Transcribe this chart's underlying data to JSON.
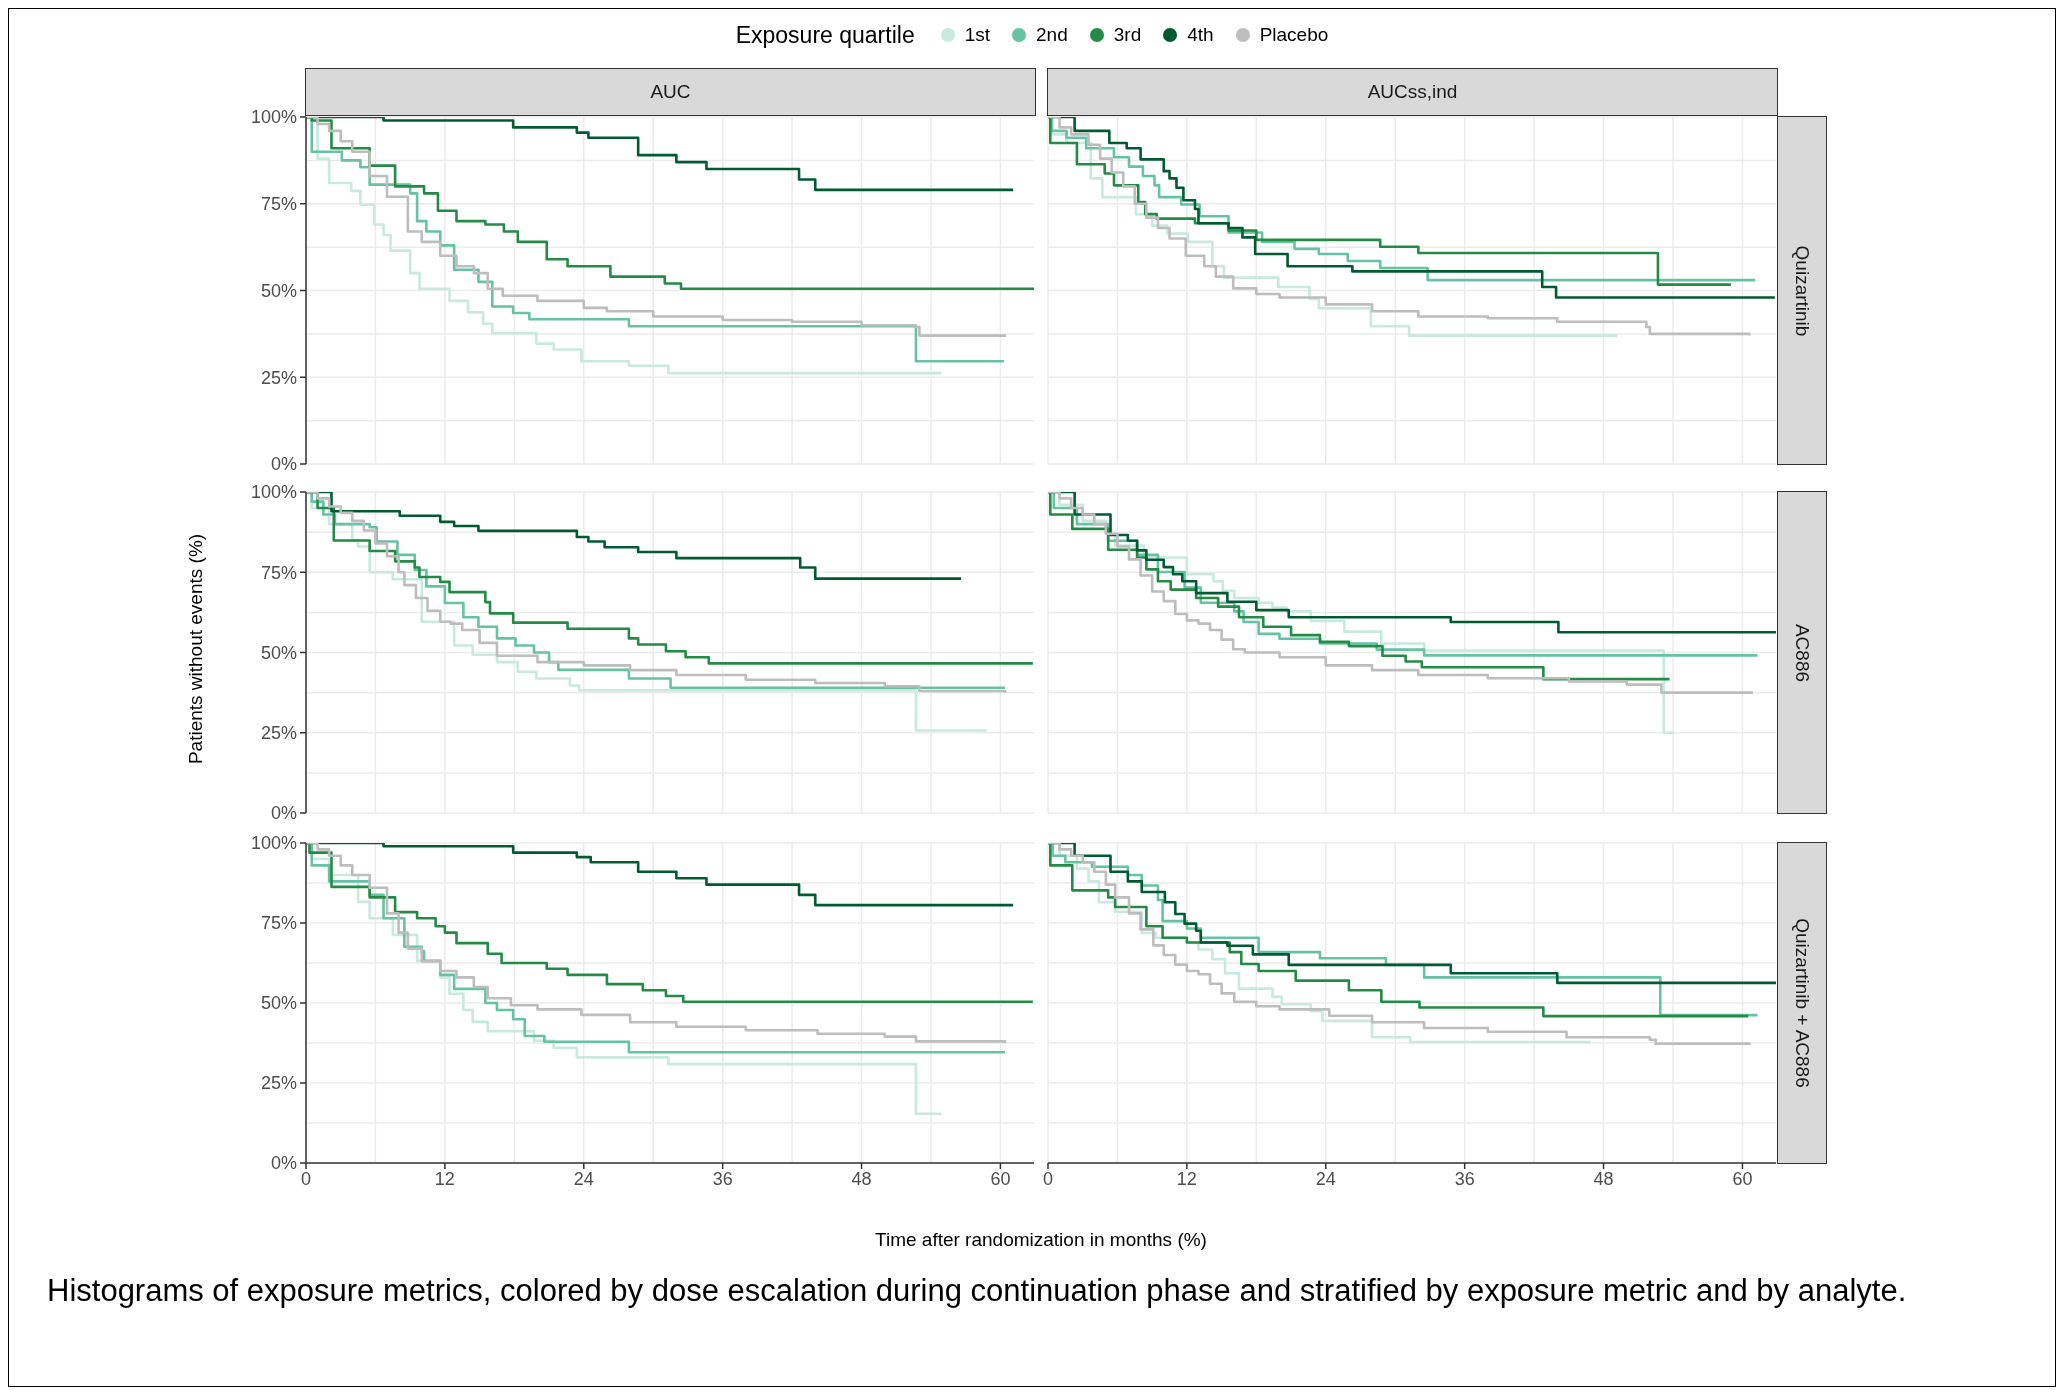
{
  "chart_data": [
    {
      "type": "step",
      "title": "AUC",
      "legend_title": "Exposure quartile",
      "legend": "top",
      "tick_labels": "y",
      "grid": true,
      "xlim": [
        0,
        62.9
      ],
      "ylim": [
        0,
        100
      ],
      "xticks": [
        {
          "value": 0,
          "label": null
        },
        {
          "value": 6,
          "label": null
        },
        {
          "value": 12,
          "label": null
        },
        {
          "value": 18,
          "label": null
        },
        {
          "value": 24,
          "label": null
        },
        {
          "value": 30,
          "label": null
        },
        {
          "value": 36,
          "label": null
        },
        {
          "value": 42,
          "label": null
        },
        {
          "value": 48,
          "label": null
        },
        {
          "value": 54,
          "label": null
        },
        {
          "value": 60,
          "label": null
        }
      ],
      "yticks": [
        {
          "value": 0,
          "label": "0%"
        },
        {
          "value": 12.5,
          "label": null
        },
        {
          "value": 25,
          "label": "25%"
        },
        {
          "value": 37.5,
          "label": null
        },
        {
          "value": 50,
          "label": "50%"
        },
        {
          "value": 62.5,
          "label": null
        },
        {
          "value": 75,
          "label": "75%"
        },
        {
          "value": 87.5,
          "label": null
        },
        {
          "value": 100,
          "label": "100%"
        }
      ],
      "series": [
        {
          "name": "1st",
          "color": "#c7e9e0",
          "x": [
            0,
            1,
            2,
            3.9,
            4.7,
            5.9,
            6.7,
            7.3,
            9,
            9.8,
            12.4,
            14,
            15.3,
            16.1,
            19.9,
            21.4,
            23.8,
            27.9,
            31.3,
            54.9
          ],
          "values": [
            100,
            88,
            81,
            78.7,
            74.7,
            69,
            66,
            61.5,
            55,
            50.5,
            47,
            43.7,
            40.4,
            37.7,
            34.7,
            33,
            29.6,
            28.3,
            26.2,
            26.2
          ]
        },
        {
          "name": "2nd",
          "color": "#66c2a4",
          "x": [
            0,
            0.5,
            3.1,
            4.7,
            5.5,
            9,
            9.6,
            10.4,
            11.6,
            12.8,
            14.9,
            16.1,
            17.9,
            19.3,
            27.9,
            52.7,
            60.3
          ],
          "values": [
            100,
            90,
            87.5,
            85.5,
            80.5,
            78,
            70,
            67,
            63,
            56,
            52.5,
            45.4,
            43.5,
            41.7,
            39.7,
            29.6,
            29.6
          ]
        },
        {
          "name": "3rd",
          "color": "#238b45",
          "x": [
            0,
            0.5,
            2.2,
            5.5,
            7.7,
            10.2,
            11.4,
            13,
            15.5,
            17.1,
            18.3,
            20.8,
            22.6,
            26.3,
            31,
            32.4,
            62.9
          ],
          "values": [
            100,
            99,
            91,
            86,
            80,
            78,
            73,
            70,
            69,
            67,
            64,
            59,
            57,
            54,
            52,
            50.5,
            50.5
          ]
        },
        {
          "name": "4th",
          "color": "#005a32",
          "x": [
            0,
            6.7,
            17.9,
            23.4,
            24.4,
            28.7,
            32,
            34.6,
            42.6,
            44,
            61.1
          ],
          "values": [
            100,
            99,
            97,
            95.5,
            94,
            89,
            87,
            85,
            82,
            79,
            79
          ]
        },
        {
          "name": "Placebo",
          "color": "#bdbdbd",
          "x": [
            0,
            1,
            2,
            3,
            4,
            5.5,
            7,
            8.8,
            10,
            11.6,
            13,
            14.5,
            15.7,
            17,
            20,
            24,
            26,
            30,
            36,
            42,
            48,
            52.7,
            53,
            60.5
          ],
          "values": [
            100,
            98,
            96,
            93,
            90,
            83,
            77,
            67,
            64,
            60,
            57,
            55,
            50.5,
            48.5,
            47,
            45,
            44,
            42.5,
            41.5,
            41,
            40,
            39.5,
            37,
            37
          ]
        }
      ]
    },
    {
      "type": "step",
      "title": "AUCss,ind",
      "y2label": "Quizartinib",
      "tick_labels": false,
      "grid": true,
      "xlim": [
        0,
        62.9
      ],
      "ylim": [
        0,
        100
      ],
      "xticks": [
        {
          "value": 0,
          "label": null
        },
        {
          "value": 6,
          "label": null
        },
        {
          "value": 12,
          "label": null
        },
        {
          "value": 18,
          "label": null
        },
        {
          "value": 24,
          "label": null
        },
        {
          "value": 30,
          "label": null
        },
        {
          "value": 36,
          "label": null
        },
        {
          "value": 42,
          "label": null
        },
        {
          "value": 48,
          "label": null
        },
        {
          "value": 54,
          "label": null
        },
        {
          "value": 60,
          "label": null
        }
      ],
      "yticks": [
        {
          "value": 0,
          "label": null
        },
        {
          "value": 12.5,
          "label": null
        },
        {
          "value": 25,
          "label": null
        },
        {
          "value": 37.5,
          "label": null
        },
        {
          "value": 50,
          "label": null
        },
        {
          "value": 62.5,
          "label": null
        },
        {
          "value": 75,
          "label": null
        },
        {
          "value": 87.5,
          "label": null
        },
        {
          "value": 100,
          "label": null
        }
      ],
      "series": [
        {
          "color": "#c7e9e0",
          "x": [
            0,
            0.4,
            1.6,
            3.7,
            4.7,
            7.6,
            9,
            10.3,
            12.1,
            14.2,
            15.2,
            19.9,
            22.6,
            23.4,
            27.9,
            31.2,
            49.2
          ],
          "values": [
            100,
            95,
            92.5,
            82.3,
            76.9,
            72,
            68.7,
            66.4,
            64,
            57,
            53.7,
            51,
            47.6,
            44.9,
            39.7,
            37,
            37
          ]
        },
        {
          "color": "#66c2a4",
          "x": [
            0,
            0.3,
            1.6,
            3.3,
            5.7,
            7,
            8.2,
            9.2,
            9.6,
            11.5,
            13.1,
            15.6,
            18.5,
            21.3,
            23.4,
            25.9,
            28.7,
            32.8,
            61.1
          ],
          "values": [
            100,
            96,
            94,
            91,
            88.4,
            85.7,
            83,
            80.3,
            76.9,
            74.8,
            71.4,
            66.7,
            64,
            62,
            60.5,
            58.5,
            56.5,
            53,
            53
          ]
        },
        {
          "color": "#238b45",
          "x": [
            0,
            0.2,
            2.5,
            4.9,
            5.7,
            7.8,
            8.4,
            9.4,
            12.7,
            15.6,
            18,
            28.7,
            32,
            52.7,
            59
          ],
          "values": [
            100,
            92.5,
            86.4,
            83.7,
            80.3,
            75.5,
            72,
            70.7,
            69.4,
            67.3,
            64.6,
            62.6,
            60.8,
            51.7,
            51.7
          ]
        },
        {
          "color": "#005a32",
          "x": [
            0,
            2.3,
            5.3,
            6.8,
            8,
            10,
            10.5,
            11.1,
            11.7,
            12.7,
            13,
            15.6,
            16.8,
            17.9,
            20.7,
            26.3,
            42.7,
            43.9,
            62.8
          ],
          "values": [
            100,
            96,
            92.5,
            91,
            87.8,
            84.4,
            82.3,
            79.6,
            76,
            73.5,
            69.4,
            68,
            65.3,
            60.5,
            57,
            55.5,
            51,
            48,
            48
          ]
        },
        {
          "color": "#bdbdbd",
          "x": [
            0,
            1,
            2,
            3.5,
            4.5,
            5.5,
            6.5,
            7.5,
            8.5,
            9.5,
            10.5,
            11.9,
            13.5,
            14.5,
            16,
            18,
            20,
            24,
            28,
            32,
            38,
            44,
            51.7,
            52,
            60.6
          ],
          "values": [
            100,
            97,
            95,
            92,
            88,
            84,
            80,
            75,
            71,
            68,
            65,
            60,
            57,
            54,
            50.6,
            49,
            48,
            46,
            44,
            42.5,
            42,
            41,
            39.5,
            37.5,
            37
          ]
        }
      ]
    },
    {
      "type": "step",
      "ylabel": "Patients without events (%)",
      "tick_labels": "y",
      "grid": true,
      "xlim": [
        0,
        62.9
      ],
      "ylim": [
        0,
        100
      ],
      "xticks": [
        {
          "value": 0,
          "label": null
        },
        {
          "value": 6,
          "label": null
        },
        {
          "value": 12,
          "label": null
        },
        {
          "value": 18,
          "label": null
        },
        {
          "value": 24,
          "label": null
        },
        {
          "value": 30,
          "label": null
        },
        {
          "value": 36,
          "label": null
        },
        {
          "value": 42,
          "label": null
        },
        {
          "value": 48,
          "label": null
        },
        {
          "value": 54,
          "label": null
        },
        {
          "value": 60,
          "label": null
        }
      ],
      "yticks": [
        {
          "value": 0,
          "label": "0%"
        },
        {
          "value": 12.5,
          "label": null
        },
        {
          "value": 25,
          "label": "25%"
        },
        {
          "value": 37.5,
          "label": null
        },
        {
          "value": 50,
          "label": "50%"
        },
        {
          "value": 62.5,
          "label": null
        },
        {
          "value": 75,
          "label": "75%"
        },
        {
          "value": 87.5,
          "label": null
        },
        {
          "value": 100,
          "label": "100%"
        }
      ],
      "series": [
        {
          "color": "#c7e9e0",
          "x": [
            0,
            0.5,
            2,
            4,
            4.5,
            5.5,
            7.5,
            10,
            12.8,
            14.4,
            16.5,
            18.3,
            19.9,
            22.8,
            23.6,
            52.7,
            58.8
          ],
          "values": [
            100,
            95,
            90,
            85,
            83,
            75,
            72.8,
            59.6,
            52.2,
            49.3,
            47,
            44,
            41.9,
            39.7,
            38.2,
            25.7,
            25.7
          ]
        },
        {
          "color": "#66c2a4",
          "x": [
            0,
            0.5,
            1.5,
            2.5,
            5.5,
            6.1,
            7.9,
            9.4,
            10.4,
            12,
            13.6,
            14.9,
            16.5,
            18.1,
            19.7,
            21,
            21.8,
            27.9,
            31.5,
            60.4
          ],
          "values": [
            100,
            97,
            93,
            90,
            89,
            84.6,
            80.4,
            75.7,
            70.6,
            65.4,
            61,
            58,
            54.4,
            52.2,
            50,
            47,
            44.6,
            41.9,
            39,
            39
          ]
        },
        {
          "color": "#238b45",
          "x": [
            0,
            1,
            2.4,
            5.5,
            7.7,
            9.4,
            9.8,
            11.6,
            12.4,
            15.5,
            15.9,
            17.9,
            22.6,
            27.9,
            28.7,
            31.1,
            32.8,
            34.8,
            62.8
          ],
          "values": [
            100,
            95,
            84.9,
            81.6,
            78.4,
            76.5,
            73.5,
            72,
            68.8,
            65.7,
            62.2,
            59.3,
            57.4,
            54.4,
            52.5,
            50.4,
            48.5,
            46.6,
            46.6
          ]
        },
        {
          "color": "#005a32",
          "x": [
            0,
            2.2,
            8.1,
            11.6,
            12.8,
            14.9,
            23.4,
            24.4,
            25.8,
            28.7,
            32,
            42.7,
            44,
            56.6
          ],
          "values": [
            100,
            94,
            92.6,
            90.7,
            89.4,
            87.9,
            86,
            84.6,
            82.8,
            81.3,
            79.4,
            76.5,
            73,
            73
          ]
        },
        {
          "color": "#bdbdbd",
          "x": [
            0,
            1,
            2,
            3,
            4,
            5,
            6,
            7,
            8,
            8.5,
            9.5,
            10.5,
            11.6,
            12.5,
            13.5,
            15,
            16.5,
            20,
            24,
            28,
            32,
            38,
            44,
            50,
            53,
            60.4
          ],
          "values": [
            100,
            98,
            95.5,
            93.5,
            91,
            88,
            84,
            80,
            75,
            71,
            67,
            63,
            59.6,
            59,
            57,
            53,
            49,
            47,
            46,
            44.5,
            43,
            41.5,
            40.5,
            39.5,
            38,
            37.5
          ]
        }
      ]
    },
    {
      "type": "step",
      "y2label": "AC886",
      "tick_labels": false,
      "grid": true,
      "xlim": [
        0,
        62.9
      ],
      "ylim": [
        0,
        100
      ],
      "xticks": [
        {
          "value": 0,
          "label": null
        },
        {
          "value": 6,
          "label": null
        },
        {
          "value": 12,
          "label": null
        },
        {
          "value": 18,
          "label": null
        },
        {
          "value": 24,
          "label": null
        },
        {
          "value": 30,
          "label": null
        },
        {
          "value": 36,
          "label": null
        },
        {
          "value": 42,
          "label": null
        },
        {
          "value": 48,
          "label": null
        },
        {
          "value": 54,
          "label": null
        },
        {
          "value": 60,
          "label": null
        }
      ],
      "yticks": [
        {
          "value": 0,
          "label": null
        },
        {
          "value": 12.5,
          "label": null
        },
        {
          "value": 25,
          "label": null
        },
        {
          "value": 37.5,
          "label": null
        },
        {
          "value": 50,
          "label": null
        },
        {
          "value": 62.5,
          "label": null
        },
        {
          "value": 75,
          "label": null
        },
        {
          "value": 87.5,
          "label": null
        },
        {
          "value": 100,
          "label": null
        }
      ],
      "series": [
        {
          "color": "#c7e9e0",
          "x": [
            0,
            1,
            3,
            5,
            5.8,
            8.3,
            12,
            14.3,
            15.1,
            16.1,
            18.2,
            19.4,
            20.6,
            22.7,
            25.6,
            28.8,
            32.5,
            53.2,
            54.1
          ],
          "values": [
            100,
            96,
            91,
            87,
            83.3,
            79.6,
            74.4,
            72.2,
            69.2,
            67,
            65.5,
            64,
            62.8,
            59.8,
            56.5,
            52.8,
            50.6,
            25,
            25
          ]
        },
        {
          "color": "#66c2a4",
          "x": [
            0,
            0.5,
            2.5,
            5.2,
            7.7,
            9.5,
            11.8,
            13.2,
            16.1,
            16.9,
            18.2,
            20,
            23.5,
            28.4,
            32.5,
            61.3
          ],
          "values": [
            100,
            95,
            90,
            84.8,
            80.4,
            75.1,
            70.2,
            65.5,
            62.8,
            59.5,
            55.8,
            54.3,
            52.8,
            50.9,
            49.1,
            49.1
          ]
        },
        {
          "color": "#238b45",
          "x": [
            0,
            0.2,
            2.1,
            5.2,
            7.7,
            8.5,
            9.5,
            10.6,
            12.8,
            14.7,
            16.5,
            18.6,
            21,
            23.5,
            26,
            28.9,
            30.9,
            32.3,
            42.8,
            53.7
          ],
          "values": [
            100,
            93,
            88.5,
            82,
            79.6,
            75.9,
            72.2,
            69.6,
            67,
            64.3,
            61,
            58,
            55.4,
            53.3,
            52,
            49,
            47.2,
            45.4,
            41.7,
            41.7
          ]
        },
        {
          "color": "#005a32",
          "x": [
            0,
            2.3,
            5.4,
            6.9,
            7.7,
            8.5,
            10,
            10.8,
            11.6,
            12.8,
            15.5,
            18,
            20.8,
            34.8,
            44.1,
            62.9
          ],
          "values": [
            100,
            93,
            86.6,
            84.8,
            81.8,
            78.9,
            76.6,
            74.4,
            72.2,
            68.5,
            65.8,
            63.2,
            61,
            59.5,
            56.3,
            56.3
          ]
        },
        {
          "color": "#bdbdbd",
          "x": [
            0,
            1,
            2,
            3,
            4,
            5,
            6,
            7,
            8,
            9,
            10,
            11,
            12,
            13,
            14,
            15,
            16,
            17,
            20,
            24,
            28,
            32,
            38,
            45,
            50,
            53,
            60.9
          ],
          "values": [
            100,
            98,
            95,
            93,
            90,
            87,
            83,
            79,
            74,
            69,
            66,
            62,
            60,
            59,
            57,
            54,
            51,
            50,
            48.5,
            46,
            44.5,
            43,
            42,
            41,
            40,
            37.5,
            37.5
          ]
        }
      ]
    },
    {
      "type": "step",
      "xlabel": "Time after randomization in months (%)",
      "annotations": [
        "Histograms of exposure metrics, colored by dose escalation during continuation phase and stratified by exposure metric and by analyte."
      ],
      "grid": true,
      "xlim": [
        0,
        62.9
      ],
      "ylim": [
        0,
        100
      ],
      "xticks": [
        0,
        {
          "value": 6,
          "label": null
        },
        12,
        {
          "value": 18,
          "label": null
        },
        24,
        {
          "value": 30,
          "label": null
        },
        36,
        {
          "value": 42,
          "label": null
        },
        48,
        {
          "value": 54,
          "label": null
        },
        60
      ],
      "yticks": [
        {
          "value": 0,
          "label": "0%"
        },
        {
          "value": 12.5,
          "label": null
        },
        {
          "value": 25,
          "label": "25%"
        },
        {
          "value": 37.5,
          "label": null
        },
        {
          "value": 50,
          "label": "50%"
        },
        {
          "value": 62.5,
          "label": null
        },
        {
          "value": 75,
          "label": "75%"
        },
        {
          "value": 87.5,
          "label": null
        },
        {
          "value": 100,
          "label": "100%"
        }
      ],
      "series": [
        {
          "color": "#c7e9e0",
          "x": [
            0,
            0.5,
            2,
            4.5,
            5.5,
            7.5,
            9.6,
            11.6,
            12.4,
            13.6,
            14.4,
            15.7,
            19.7,
            21.4,
            23.4,
            31.3,
            52.7,
            54.9
          ],
          "values": [
            100,
            95,
            90,
            81.6,
            76.5,
            71.3,
            63.2,
            58,
            52.9,
            47.8,
            44.1,
            41.2,
            38.2,
            36,
            33,
            30.9,
            15.4,
            15.4
          ]
        },
        {
          "color": "#66c2a4",
          "x": [
            0,
            0.5,
            2,
            5.5,
            6.7,
            8.5,
            10,
            10.2,
            11.6,
            12.8,
            15.5,
            16.5,
            17.9,
            18.9,
            20.6,
            27.9,
            60.4
          ],
          "values": [
            100,
            93,
            88,
            83.8,
            76.5,
            67.6,
            66.2,
            63.2,
            58.8,
            54.4,
            50,
            47.8,
            44.9,
            39.7,
            37.9,
            34.6,
            34.6
          ]
        },
        {
          "color": "#238b45",
          "x": [
            0,
            0.3,
            2.2,
            5.5,
            7.7,
            9.6,
            11.2,
            12,
            13,
            15.7,
            16.9,
            20.8,
            22.6,
            26,
            29.1,
            31.1,
            32.6,
            62.8
          ],
          "values": [
            100,
            97,
            86.3,
            83,
            78.4,
            76.5,
            74,
            72,
            68.7,
            65.4,
            62.5,
            60.7,
            58.8,
            55.9,
            54,
            52.2,
            50.4,
            50.4
          ]
        },
        {
          "color": "#005a32",
          "x": [
            0,
            6.7,
            17.9,
            23.4,
            24.6,
            28.7,
            32,
            34.6,
            42.6,
            44,
            61.1
          ],
          "values": [
            100,
            99,
            97,
            95.6,
            94,
            91,
            89,
            87,
            83.8,
            80.6,
            80.6
          ]
        },
        {
          "color": "#bdbdbd",
          "x": [
            0,
            1,
            2,
            3,
            4,
            5.5,
            7,
            8,
            8.8,
            10,
            11.6,
            13,
            14.5,
            15.7,
            17.7,
            20,
            23.8,
            28,
            32,
            38,
            44.2,
            50,
            52.7,
            60.4
          ],
          "values": [
            100,
            98,
            96,
            93,
            90,
            86,
            78,
            72,
            67,
            63,
            60,
            58,
            55,
            51.5,
            49.3,
            48,
            46.3,
            44,
            42.6,
            41.5,
            40.4,
            39.5,
            38,
            37.5
          ]
        }
      ]
    },
    {
      "type": "step",
      "y2label": "Quizartinib + AC886",
      "tick_labels": "x",
      "grid": true,
      "xlim": [
        0,
        62.9
      ],
      "ylim": [
        0,
        100
      ],
      "xticks": [
        0,
        {
          "value": 6,
          "label": null
        },
        12,
        {
          "value": 18,
          "label": null
        },
        24,
        {
          "value": 30,
          "label": null
        },
        36,
        {
          "value": 42,
          "label": null
        },
        48,
        {
          "value": 54,
          "label": null
        },
        60
      ],
      "yticks": [
        {
          "value": 0,
          "label": null
        },
        {
          "value": 12.5,
          "label": null
        },
        {
          "value": 25,
          "label": null
        },
        {
          "value": 37.5,
          "label": null
        },
        {
          "value": 50,
          "label": null
        },
        {
          "value": 62.5,
          "label": null
        },
        {
          "value": 75,
          "label": null
        },
        {
          "value": 87.5,
          "label": null
        },
        {
          "value": 100,
          "label": null
        }
      ],
      "series": [
        {
          "color": "#c7e9e0",
          "x": [
            0,
            1,
            2.5,
            3.5,
            4.4,
            5.8,
            8.1,
            9.3,
            12,
            13,
            14.2,
            15.3,
            16.5,
            19.4,
            20.2,
            22.7,
            23.7,
            28,
            31.3,
            46.9
          ],
          "values": [
            100,
            96,
            92,
            88,
            81.5,
            78.5,
            71.9,
            70.4,
            68.9,
            66.7,
            63.7,
            59.3,
            54.5,
            51.9,
            49.6,
            47.4,
            44.4,
            39.3,
            37.8,
            37.8
          ]
        },
        {
          "color": "#66c2a4",
          "x": [
            0,
            0.4,
            1.5,
            3.8,
            6.9,
            8.1,
            9.5,
            9.9,
            12,
            13.2,
            18.2,
            23.5,
            29.2,
            32.5,
            52.9,
            61.3
          ],
          "values": [
            100,
            96,
            94,
            92.6,
            90,
            86.7,
            82.2,
            75.6,
            73.3,
            70.4,
            65.9,
            64,
            61.9,
            58,
            46.2,
            46.2
          ]
        },
        {
          "color": "#238b45",
          "x": [
            0,
            0.2,
            2.1,
            5.2,
            5.8,
            8.5,
            9.9,
            12,
            15.7,
            16.7,
            18.2,
            21.4,
            26,
            28.8,
            32.1,
            42.8,
            60.5
          ],
          "values": [
            100,
            93,
            85.2,
            83,
            80,
            74,
            70.4,
            68.9,
            65.9,
            62.2,
            60,
            57,
            54,
            50.4,
            48.6,
            45.9,
            45.9
          ]
        },
        {
          "color": "#005a32",
          "x": [
            0,
            2.3,
            5.4,
            6.9,
            8.1,
            10.1,
            11,
            11.8,
            12.8,
            13.2,
            15.5,
            17.7,
            20.8,
            34.8,
            44,
            62.9
          ],
          "values": [
            100,
            96,
            91,
            88,
            84.7,
            81.5,
            77.8,
            74.8,
            72.6,
            68.9,
            67.9,
            65.2,
            61.9,
            59.3,
            56.3,
            56.3
          ]
        },
        {
          "color": "#bdbdbd",
          "x": [
            0,
            1,
            2,
            3,
            4,
            5,
            5.8,
            7,
            8,
            9.1,
            10,
            11,
            12,
            13,
            14,
            15,
            16.1,
            18,
            20,
            24.3,
            28,
            32.5,
            38,
            44.8,
            52,
            52.5,
            60.7
          ],
          "values": [
            100,
            98,
            96,
            94,
            91,
            87,
            83,
            78,
            73,
            68,
            65,
            62,
            60,
            59,
            56,
            53,
            50.4,
            49,
            48,
            46,
            44,
            42.2,
            41,
            39.3,
            38.5,
            37.3,
            37.3
          ]
        }
      ]
    }
  ]
}
